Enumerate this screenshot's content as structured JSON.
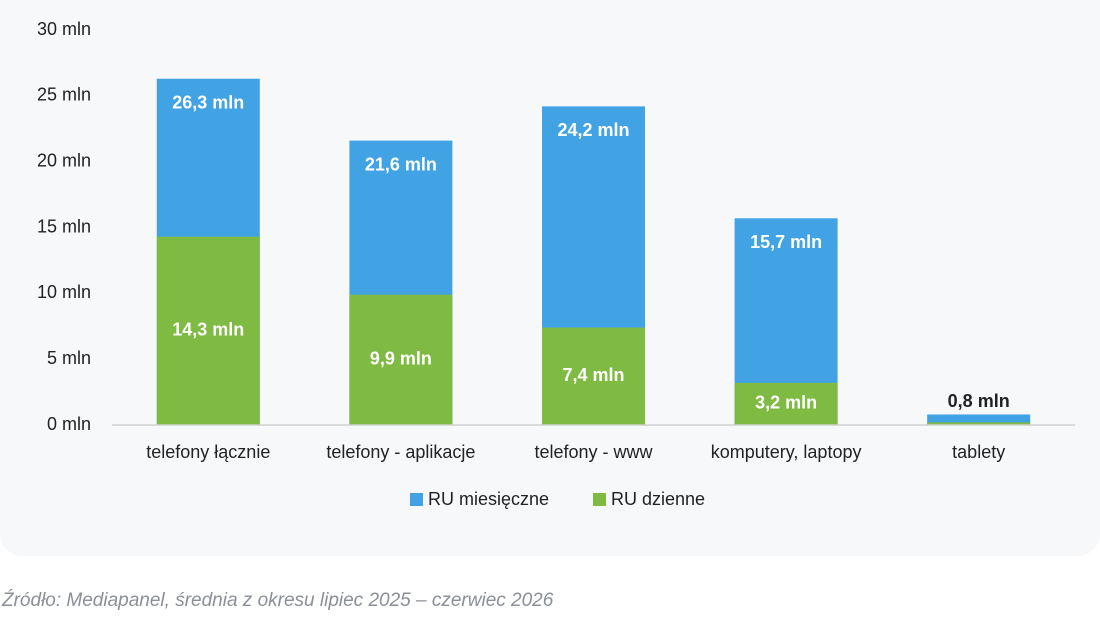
{
  "chart_data": {
    "type": "bar",
    "categories": [
      "telefony łącznie",
      "telefony - aplikacje",
      "telefony - www",
      "komputery, laptopy",
      "tablety"
    ],
    "series": [
      {
        "name": "RU miesięczne",
        "color": "#41a3e3",
        "values": [
          26.3,
          21.6,
          24.2,
          15.7,
          0.8
        ],
        "value_labels": [
          "26,3 mln",
          "21,6 mln",
          "24,2 mln",
          "15,7 mln",
          "0,8 mln"
        ]
      },
      {
        "name": "RU dzienne",
        "color": "#7fba42",
        "values": [
          14.3,
          9.9,
          7.4,
          3.2,
          0.2
        ],
        "value_labels": [
          "14,3 mln",
          "9,9 mln",
          "7,4 mln",
          "3,2 mln",
          null
        ]
      }
    ],
    "ylim": [
      0,
      30
    ],
    "yticks": [
      {
        "value": 0,
        "label": "0 mln"
      },
      {
        "value": 5,
        "label": "5 mln"
      },
      {
        "value": 10,
        "label": "10 mln"
      },
      {
        "value": 15,
        "label": "15 mln"
      },
      {
        "value": 20,
        "label": "20 mln"
      },
      {
        "value": 25,
        "label": "25 mln"
      },
      {
        "value": 30,
        "label": "30 mln"
      }
    ],
    "grid": false,
    "legend": "bottom",
    "source": "Źródło: Mediapanel, średnia z okresu lipiec 2025 – czerwiec 2026"
  }
}
